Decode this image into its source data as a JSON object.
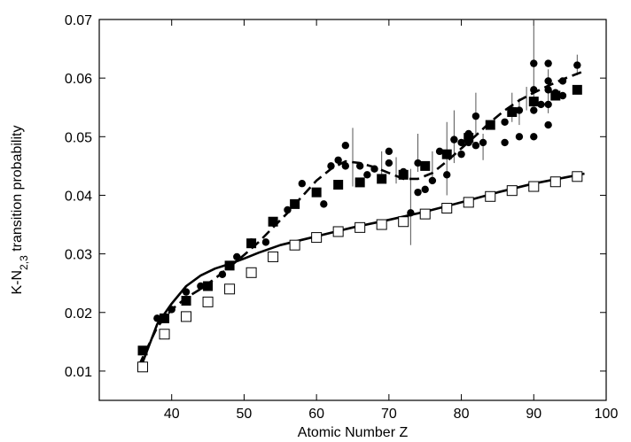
{
  "chart_data": {
    "type": "scatter",
    "xlabel": "Atomic Number Z",
    "ylabel_parts": [
      "K-N",
      "2,3",
      " transition probability"
    ],
    "xlim": [
      30,
      100
    ],
    "ylim": [
      0.005,
      0.07
    ],
    "x_ticks": [
      40,
      50,
      60,
      70,
      80,
      90,
      100
    ],
    "x_tick_labels": [
      "40",
      "50",
      "60",
      "70",
      "80",
      "90",
      "100"
    ],
    "y_ticks": [
      0.01,
      0.02,
      0.03,
      0.04,
      0.05,
      0.06,
      0.07
    ],
    "y_tick_labels": [
      "0.01",
      "0.02",
      "0.03",
      "0.04",
      "0.05",
      "0.06",
      "0.07"
    ],
    "grid": false,
    "legend": "none",
    "series": [
      {
        "marker": "filled-circle",
        "points": [
          {
            "x": 36,
            "y": 0.0135
          },
          {
            "x": 38,
            "y": 0.019
          },
          {
            "x": 40,
            "y": 0.0205
          },
          {
            "x": 42,
            "y": 0.0235
          },
          {
            "x": 44,
            "y": 0.0245
          },
          {
            "x": 47,
            "y": 0.0265
          },
          {
            "x": 49,
            "y": 0.0295
          },
          {
            "x": 51,
            "y": 0.032
          },
          {
            "x": 53,
            "y": 0.032
          },
          {
            "x": 56,
            "y": 0.0375
          },
          {
            "x": 58,
            "y": 0.042
          },
          {
            "x": 61,
            "y": 0.0385
          },
          {
            "x": 62,
            "y": 0.045
          },
          {
            "x": 63,
            "y": 0.046
          },
          {
            "x": 64,
            "y": 0.0485
          },
          {
            "x": 64,
            "y": 0.045
          },
          {
            "x": 66,
            "y": 0.045
          },
          {
            "x": 67,
            "y": 0.0435
          },
          {
            "x": 68,
            "y": 0.0445
          },
          {
            "x": 70,
            "y": 0.0475
          },
          {
            "x": 70,
            "y": 0.0455
          },
          {
            "x": 72,
            "y": 0.044
          },
          {
            "x": 73,
            "y": 0.037
          },
          {
            "x": 74,
            "y": 0.0405
          },
          {
            "x": 74,
            "y": 0.0455
          },
          {
            "x": 75,
            "y": 0.041
          },
          {
            "x": 76,
            "y": 0.0425
          },
          {
            "x": 77,
            "y": 0.0475
          },
          {
            "x": 78,
            "y": 0.047
          },
          {
            "x": 78,
            "y": 0.0435
          },
          {
            "x": 79,
            "y": 0.0495
          },
          {
            "x": 80,
            "y": 0.049
          },
          {
            "x": 80,
            "y": 0.047
          },
          {
            "x": 81,
            "y": 0.0505
          },
          {
            "x": 81,
            "y": 0.049
          },
          {
            "x": 82,
            "y": 0.0485
          },
          {
            "x": 82,
            "y": 0.0535
          },
          {
            "x": 83,
            "y": 0.049
          },
          {
            "x": 86,
            "y": 0.0525
          },
          {
            "x": 86,
            "y": 0.049
          },
          {
            "x": 87,
            "y": 0.0545
          },
          {
            "x": 88,
            "y": 0.0545
          },
          {
            "x": 88,
            "y": 0.05
          },
          {
            "x": 90,
            "y": 0.0625
          },
          {
            "x": 90,
            "y": 0.058
          },
          {
            "x": 90,
            "y": 0.0545
          },
          {
            "x": 90,
            "y": 0.05
          },
          {
            "x": 91,
            "y": 0.0555
          },
          {
            "x": 92,
            "y": 0.0625
          },
          {
            "x": 92,
            "y": 0.0595
          },
          {
            "x": 92,
            "y": 0.058
          },
          {
            "x": 92,
            "y": 0.0555
          },
          {
            "x": 92,
            "y": 0.052
          },
          {
            "x": 93,
            "y": 0.0575
          },
          {
            "x": 94,
            "y": 0.0595
          },
          {
            "x": 94,
            "y": 0.057
          },
          {
            "x": 96,
            "y": 0.0622
          }
        ]
      },
      {
        "marker": "filled-square",
        "points": [
          {
            "x": 36,
            "y": 0.0135
          },
          {
            "x": 39,
            "y": 0.019
          },
          {
            "x": 42,
            "y": 0.022
          },
          {
            "x": 45,
            "y": 0.0245
          },
          {
            "x": 48,
            "y": 0.028
          },
          {
            "x": 51,
            "y": 0.0318
          },
          {
            "x": 54,
            "y": 0.0355
          },
          {
            "x": 57,
            "y": 0.0385
          },
          {
            "x": 60,
            "y": 0.0405
          },
          {
            "x": 63,
            "y": 0.0418
          },
          {
            "x": 66,
            "y": 0.0422
          },
          {
            "x": 69,
            "y": 0.0428
          },
          {
            "x": 72,
            "y": 0.0435
          },
          {
            "x": 75,
            "y": 0.045
          },
          {
            "x": 78,
            "y": 0.047
          },
          {
            "x": 81,
            "y": 0.0498
          },
          {
            "x": 84,
            "y": 0.052
          },
          {
            "x": 87,
            "y": 0.0542
          },
          {
            "x": 90,
            "y": 0.056
          },
          {
            "x": 93,
            "y": 0.057
          },
          {
            "x": 96,
            "y": 0.058
          }
        ]
      },
      {
        "marker": "open-square",
        "points": [
          {
            "x": 36,
            "y": 0.0107
          },
          {
            "x": 39,
            "y": 0.0163
          },
          {
            "x": 42,
            "y": 0.0193
          },
          {
            "x": 45,
            "y": 0.0218
          },
          {
            "x": 48,
            "y": 0.024
          },
          {
            "x": 51,
            "y": 0.0268
          },
          {
            "x": 54,
            "y": 0.0295
          },
          {
            "x": 57,
            "y": 0.0315
          },
          {
            "x": 60,
            "y": 0.0328
          },
          {
            "x": 63,
            "y": 0.0338
          },
          {
            "x": 66,
            "y": 0.0345
          },
          {
            "x": 69,
            "y": 0.035
          },
          {
            "x": 72,
            "y": 0.0355
          },
          {
            "x": 75,
            "y": 0.0368
          },
          {
            "x": 78,
            "y": 0.0378
          },
          {
            "x": 81,
            "y": 0.0388
          },
          {
            "x": 84,
            "y": 0.0398
          },
          {
            "x": 87,
            "y": 0.0408
          },
          {
            "x": 90,
            "y": 0.0415
          },
          {
            "x": 93,
            "y": 0.0423
          },
          {
            "x": 96,
            "y": 0.0432
          }
        ]
      },
      {
        "style": "dashed-line",
        "x": [
          35.5,
          38,
          40,
          42,
          44,
          46,
          48,
          50,
          52,
          54,
          56,
          58,
          60,
          62,
          64,
          66,
          68,
          70,
          72,
          74,
          76,
          78,
          80,
          82,
          84,
          86,
          88,
          90,
          92,
          94,
          97
        ],
        "y": [
          0.011,
          0.0175,
          0.0205,
          0.0225,
          0.024,
          0.0258,
          0.0278,
          0.0298,
          0.032,
          0.0345,
          0.037,
          0.0398,
          0.0425,
          0.0445,
          0.0458,
          0.0455,
          0.0448,
          0.0438,
          0.0428,
          0.0428,
          0.0438,
          0.0458,
          0.048,
          0.0502,
          0.0525,
          0.0545,
          0.0562,
          0.0575,
          0.0587,
          0.0598,
          0.0612
        ]
      },
      {
        "style": "solid-line",
        "x": [
          36,
          38,
          40,
          42,
          44,
          46,
          48,
          50,
          52,
          55,
          60,
          65,
          70,
          75,
          80,
          85,
          90,
          95,
          97
        ],
        "y": [
          0.0115,
          0.018,
          0.0215,
          0.0245,
          0.0263,
          0.0275,
          0.0283,
          0.0292,
          0.0302,
          0.0315,
          0.033,
          0.0345,
          0.0358,
          0.0372,
          0.0388,
          0.0405,
          0.042,
          0.0432,
          0.0437
        ]
      }
    ],
    "error_bars": [
      {
        "x": 65,
        "low": 0.0415,
        "high": 0.0515
      },
      {
        "x": 69,
        "low": 0.0425,
        "high": 0.0475
      },
      {
        "x": 71,
        "low": 0.042,
        "high": 0.0465
      },
      {
        "x": 73,
        "low": 0.0315,
        "high": 0.0445
      },
      {
        "x": 74,
        "low": 0.044,
        "high": 0.0505
      },
      {
        "x": 76,
        "low": 0.043,
        "high": 0.0475
      },
      {
        "x": 78,
        "low": 0.04,
        "high": 0.0525
      },
      {
        "x": 79,
        "low": 0.0455,
        "high": 0.0545
      },
      {
        "x": 82,
        "low": 0.0505,
        "high": 0.0575
      },
      {
        "x": 83,
        "low": 0.046,
        "high": 0.0505
      },
      {
        "x": 87,
        "low": 0.0525,
        "high": 0.0575
      },
      {
        "x": 88,
        "low": 0.052,
        "high": 0.0565
      },
      {
        "x": 89,
        "low": 0.0545,
        "high": 0.0585
      },
      {
        "x": 90,
        "low": 0.0555,
        "high": 0.07
      },
      {
        "x": 92,
        "low": 0.054,
        "high": 0.0615
      },
      {
        "x": 96,
        "low": 0.0605,
        "high": 0.064
      }
    ]
  }
}
